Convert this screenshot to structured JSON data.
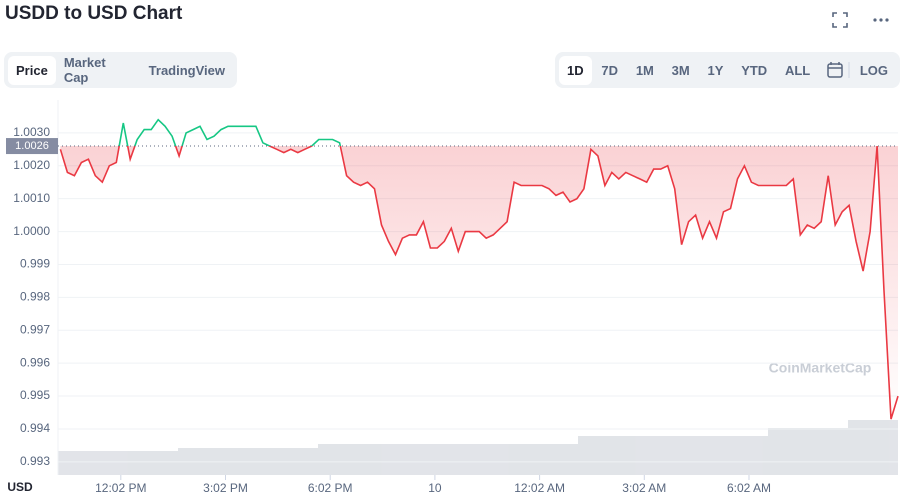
{
  "header": {
    "title": "USDD to USD Chart",
    "tabs": [
      "Price",
      "Market Cap",
      "TradingView"
    ],
    "ranges": [
      "1D",
      "7D",
      "1M",
      "3M",
      "1Y",
      "YTD",
      "ALL"
    ],
    "log_button": "LOG",
    "watermark": "CoinMarketCap"
  },
  "chart_data": {
    "type": "line",
    "y_label": "USD",
    "up_color": "#16c784",
    "down_color": "#ea3943",
    "reference_value": 1.0026,
    "xlim": [
      10.23,
      34.3
    ],
    "xticks": [
      {
        "value": 12.03,
        "label": "12:02 PM"
      },
      {
        "value": 15.03,
        "label": "3:02 PM"
      },
      {
        "value": 18.03,
        "label": "6:02 PM"
      },
      {
        "value": 21.03,
        "label": "10"
      },
      {
        "value": 24.03,
        "label": "12:02 AM"
      },
      {
        "value": 27.03,
        "label": "3:02 AM"
      },
      {
        "value": 30.03,
        "label": "6:02 AM"
      }
    ],
    "ylim": [
      0.9926,
      1.004
    ],
    "yticks": [
      {
        "value": 1.003,
        "label": "1.0030"
      },
      {
        "value": 1.002,
        "label": "1.0020"
      },
      {
        "value": 1.001,
        "label": "1.0010"
      },
      {
        "value": 1,
        "label": "1.0000"
      },
      0.999,
      0.998,
      0.997,
      0.996,
      0.995,
      0.994,
      0.993
    ],
    "grid": true,
    "x": [
      10.3,
      10.5,
      10.7,
      10.9,
      11.1,
      11.3,
      11.5,
      11.7,
      11.9,
      12.1,
      12.3,
      12.5,
      12.7,
      12.9,
      13.1,
      13.3,
      13.5,
      13.7,
      13.9,
      14.1,
      14.3,
      14.5,
      14.7,
      14.9,
      15.1,
      15.3,
      15.5,
      15.7,
      15.9,
      16.1,
      16.3,
      16.5,
      16.7,
      16.9,
      17.1,
      17.3,
      17.5,
      17.7,
      17.9,
      18.1,
      18.3,
      18.5,
      18.7,
      18.9,
      19.1,
      19.3,
      19.5,
      19.7,
      19.9,
      20.1,
      20.3,
      20.5,
      20.7,
      20.9,
      21.1,
      21.3,
      21.5,
      21.7,
      21.9,
      22.1,
      22.3,
      22.5,
      22.7,
      22.9,
      23.1,
      23.3,
      23.5,
      23.7,
      23.9,
      24.1,
      24.3,
      24.5,
      24.7,
      24.9,
      25.1,
      25.3,
      25.5,
      25.7,
      25.9,
      26.1,
      26.3,
      26.5,
      26.7,
      26.9,
      27.1,
      27.3,
      27.5,
      27.7,
      27.9,
      28.1,
      28.3,
      28.5,
      28.7,
      28.9,
      29.1,
      29.3,
      29.5,
      29.7,
      29.9,
      30.1,
      30.3,
      30.5,
      30.7,
      30.9,
      31.1,
      31.3,
      31.5,
      31.7,
      31.9,
      32.1,
      32.3,
      32.5,
      32.7,
      32.9,
      33.1,
      33.3,
      33.5,
      33.7,
      33.9,
      34.1,
      34.3
    ],
    "values": [
      1.0025,
      1.0018,
      1.0017,
      1.0021,
      1.0022,
      1.0017,
      1.0015,
      1.002,
      1.0021,
      1.0033,
      1.0022,
      1.0028,
      1.0031,
      1.0031,
      1.0034,
      1.0032,
      1.0029,
      1.0023,
      1.003,
      1.0031,
      1.0032,
      1.0028,
      1.0029,
      1.0031,
      1.0032,
      1.0032,
      1.0032,
      1.0032,
      1.0032,
      1.0027,
      1.0026,
      1.0025,
      1.0024,
      1.0025,
      1.0024,
      1.0025,
      1.0026,
      1.0028,
      1.0028,
      1.0028,
      1.0027,
      1.0017,
      1.0015,
      1.0014,
      1.0015,
      1.0013,
      1.0002,
      0.9997,
      0.9993,
      0.9998,
      0.9999,
      0.9999,
      1.0003,
      0.9995,
      0.9995,
      0.9997,
      1.0001,
      0.9994,
      1.0,
      1.0,
      1.0,
      0.9998,
      0.9999,
      1.0001,
      1.0003,
      1.0015,
      1.0014,
      1.0014,
      1.0014,
      1.0014,
      1.0013,
      1.0011,
      1.0012,
      1.0009,
      1.001,
      1.0013,
      1.0025,
      1.0023,
      1.0014,
      1.0018,
      1.0016,
      1.0018,
      1.0017,
      1.0016,
      1.0015,
      1.0019,
      1.0019,
      1.002,
      1.0013,
      0.9996,
      1.0003,
      1.0005,
      0.9998,
      1.0003,
      0.9998,
      1.0006,
      1.0007,
      1.0016,
      1.002,
      1.0015,
      1.0014,
      1.0014,
      1.0014,
      1.0014,
      1.0014,
      1.0016,
      0.9999,
      1.0002,
      1.0001,
      1.0003,
      1.0017,
      1.0002,
      1.0006,
      1.0008,
      0.9997,
      0.9988,
      1.0,
      1.0026,
      0.9982,
      0.9943,
      0.995
    ]
  }
}
